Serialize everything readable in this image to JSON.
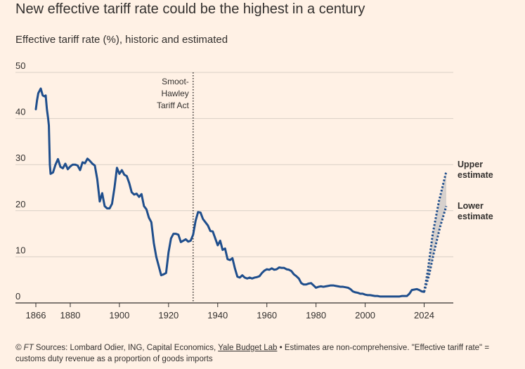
{
  "header": {
    "title": "New effective tariff rate could be the highest in a century",
    "subtitle": "Effective tariff rate (%), historic and estimated"
  },
  "footer": {
    "copyright": "© FT",
    "sources_prefix": " Sources: Lombard Odier, ING, Capital Economics, ",
    "sources_link": "Yale Budget Lab",
    "notes": " • Estimates are non-comprehensive. \"Effective tariff rate\" = customs duty revenue as a proportion of goods imports"
  },
  "chart_data": {
    "type": "line",
    "title": "New effective tariff rate could be the highest in a century",
    "subtitle": "Effective tariff rate (%), historic and estimated",
    "xlim": [
      1866,
      2035
    ],
    "ylim": [
      0,
      50
    ],
    "x_ticks": [
      1866,
      1880,
      1900,
      1920,
      1940,
      1960,
      1980,
      2000,
      2024
    ],
    "y_ticks": [
      0,
      10,
      20,
      30,
      40,
      50
    ],
    "grid": true,
    "colors": {
      "line": "#1f4e8c",
      "estimate_band": "#c9c6c4",
      "grid": "#d9cfc5",
      "axis": "#33302e"
    },
    "series": [
      {
        "style": "solid",
        "points": [
          [
            1866,
            42
          ],
          [
            1866.5,
            44
          ],
          [
            1867,
            45.5
          ],
          [
            1868,
            46.5
          ],
          [
            1868.8,
            45
          ],
          [
            1869.5,
            44.8
          ],
          [
            1870,
            45
          ],
          [
            1870.5,
            42
          ],
          [
            1871,
            40
          ],
          [
            1871.3,
            38.5
          ],
          [
            1871.7,
            30
          ],
          [
            1872,
            28
          ],
          [
            1873,
            28.3
          ],
          [
            1874,
            30
          ],
          [
            1875,
            31.2
          ],
          [
            1876,
            29.5
          ],
          [
            1877,
            29.2
          ],
          [
            1878,
            30.2
          ],
          [
            1879,
            29
          ],
          [
            1880,
            29.6
          ],
          [
            1881,
            30
          ],
          [
            1882,
            30
          ],
          [
            1883,
            29.8
          ],
          [
            1884,
            28.8
          ],
          [
            1885,
            30.5
          ],
          [
            1886,
            30.3
          ],
          [
            1887,
            31.3
          ],
          [
            1888,
            30.8
          ],
          [
            1889,
            30.2
          ],
          [
            1890,
            29.8
          ],
          [
            1891,
            26.8
          ],
          [
            1892,
            22
          ],
          [
            1893,
            23.8
          ],
          [
            1894,
            21
          ],
          [
            1895,
            20.5
          ],
          [
            1896,
            20.5
          ],
          [
            1897,
            21.5
          ],
          [
            1898,
            25
          ],
          [
            1899,
            29.3
          ],
          [
            1900,
            28
          ],
          [
            1901,
            28.8
          ],
          [
            1902,
            27.8
          ],
          [
            1903,
            27.5
          ],
          [
            1904,
            26
          ],
          [
            1905,
            24
          ],
          [
            1906,
            23.5
          ],
          [
            1907,
            23.7
          ],
          [
            1908,
            23
          ],
          [
            1909,
            23.6
          ],
          [
            1910,
            21
          ],
          [
            1911,
            20.3
          ],
          [
            1912,
            18.5
          ],
          [
            1913,
            17.5
          ],
          [
            1914,
            13
          ],
          [
            1915,
            10
          ],
          [
            1916,
            8
          ],
          [
            1917,
            6
          ],
          [
            1918,
            6.2
          ],
          [
            1919,
            6.5
          ],
          [
            1920,
            11
          ],
          [
            1921,
            14
          ],
          [
            1922,
            15
          ],
          [
            1923,
            15
          ],
          [
            1924,
            14.8
          ],
          [
            1925,
            13.2
          ],
          [
            1926,
            13.5
          ],
          [
            1927,
            13.8
          ],
          [
            1928,
            13.3
          ],
          [
            1929,
            13.5
          ],
          [
            1930,
            14.8
          ],
          [
            1931,
            17.8
          ],
          [
            1932,
            19.7
          ],
          [
            1933,
            19.6
          ],
          [
            1934,
            18.2
          ],
          [
            1935,
            17.5
          ],
          [
            1936,
            16.8
          ],
          [
            1937,
            15.6
          ],
          [
            1938,
            15.5
          ],
          [
            1939,
            14
          ],
          [
            1940,
            12.5
          ],
          [
            1941,
            13.5
          ],
          [
            1942,
            11.5
          ],
          [
            1943,
            11.8
          ],
          [
            1944,
            9.5
          ],
          [
            1945,
            9.3
          ],
          [
            1946,
            9.7
          ],
          [
            1947,
            7.5
          ],
          [
            1948,
            5.7
          ],
          [
            1949,
            5.5
          ],
          [
            1950,
            6
          ],
          [
            1951,
            5.5
          ],
          [
            1952,
            5.3
          ],
          [
            1953,
            5.5
          ],
          [
            1954,
            5.3
          ],
          [
            1955,
            5.5
          ],
          [
            1956,
            5.6
          ],
          [
            1957,
            5.8
          ],
          [
            1958,
            6.5
          ],
          [
            1959,
            7
          ],
          [
            1960,
            7.3
          ],
          [
            1961,
            7.2
          ],
          [
            1962,
            7.5
          ],
          [
            1963,
            7.2
          ],
          [
            1964,
            7.3
          ],
          [
            1965,
            7.7
          ],
          [
            1966,
            7.6
          ],
          [
            1967,
            7.6
          ],
          [
            1968,
            7.3
          ],
          [
            1969,
            7.2
          ],
          [
            1970,
            6.9
          ],
          [
            1971,
            6.2
          ],
          [
            1972,
            5.8
          ],
          [
            1973,
            5.3
          ],
          [
            1974,
            4.3
          ],
          [
            1975,
            4
          ],
          [
            1976,
            4
          ],
          [
            1977,
            4.2
          ],
          [
            1978,
            4.3
          ],
          [
            1979,
            3.8
          ],
          [
            1980,
            3.3
          ],
          [
            1981,
            3.5
          ],
          [
            1982,
            3.6
          ],
          [
            1983,
            3.5
          ],
          [
            1984,
            3.6
          ],
          [
            1985,
            3.7
          ],
          [
            1986,
            3.8
          ],
          [
            1987,
            3.8
          ],
          [
            1988,
            3.7
          ],
          [
            1989,
            3.6
          ],
          [
            1990,
            3.5
          ],
          [
            1991,
            3.5
          ],
          [
            1992,
            3.4
          ],
          [
            1993,
            3.3
          ],
          [
            1994,
            3
          ],
          [
            1995,
            2.5
          ],
          [
            1996,
            2.3
          ],
          [
            1997,
            2.2
          ],
          [
            1998,
            2
          ],
          [
            1999,
            2
          ],
          [
            2000,
            1.8
          ],
          [
            2001,
            1.7
          ],
          [
            2002,
            1.7
          ],
          [
            2003,
            1.6
          ],
          [
            2004,
            1.5
          ],
          [
            2005,
            1.5
          ],
          [
            2006,
            1.4
          ],
          [
            2007,
            1.4
          ],
          [
            2008,
            1.4
          ],
          [
            2009,
            1.4
          ],
          [
            2010,
            1.4
          ],
          [
            2011,
            1.4
          ],
          [
            2012,
            1.4
          ],
          [
            2013,
            1.4
          ],
          [
            2014,
            1.4
          ],
          [
            2015,
            1.5
          ],
          [
            2016,
            1.5
          ],
          [
            2017,
            1.5
          ],
          [
            2018,
            2
          ],
          [
            2019,
            2.8
          ],
          [
            2020,
            2.9
          ],
          [
            2021,
            3
          ],
          [
            2022,
            2.8
          ],
          [
            2023,
            2.5
          ],
          [
            2024,
            2.4
          ]
        ]
      },
      {
        "name": "Upper estimate",
        "style": "dotted",
        "points": [
          [
            2024,
            2.4
          ],
          [
            2025.5,
            7
          ],
          [
            2027.5,
            15
          ],
          [
            2030,
            22
          ],
          [
            2033,
            28.5
          ]
        ]
      },
      {
        "name": "Lower estimate",
        "style": "dotted",
        "points": [
          [
            2024,
            2.4
          ],
          [
            2026,
            6
          ],
          [
            2028,
            11
          ],
          [
            2030.5,
            16.5
          ],
          [
            2033,
            21
          ]
        ]
      }
    ],
    "annotations": [
      {
        "x": 1930,
        "lines": [
          "Smoot-",
          "Hawley",
          "Tariff Act"
        ],
        "style": "dotted-vertical"
      }
    ]
  }
}
